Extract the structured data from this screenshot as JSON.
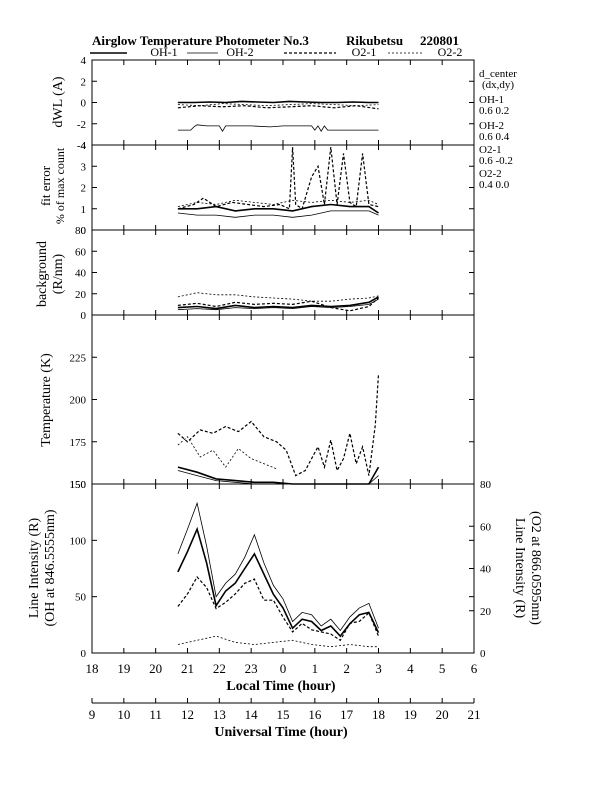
{
  "header": {
    "title": "Airglow Temperature Photometer No.3",
    "station": "Rikubetsu",
    "date_code": "220801"
  },
  "legend": [
    {
      "name": "OH-1",
      "style": "solid"
    },
    {
      "name": "OH-2",
      "style": "solid-thin"
    },
    {
      "name": "O2-1",
      "style": "dashed"
    },
    {
      "name": "O2-2",
      "style": "dotted"
    }
  ],
  "side_notes": {
    "header1": "d_center",
    "header2": "(dx,dy)",
    "oh1_name": "OH-1",
    "oh1_val": "0.6  0.2",
    "oh2_name": "OH-2",
    "oh2_val": "0.6  0.4",
    "o21_name": "O2-1",
    "o21_val": "0.6  -0.2",
    "o22_name": "O2-2",
    "o22_val": "0.4  0.0"
  },
  "x_axes": {
    "local_label": "Local Time (hour)",
    "local_ticks": [
      "18",
      "19",
      "20",
      "21",
      "22",
      "23",
      "0",
      "1",
      "2",
      "3",
      "4",
      "5",
      "6"
    ],
    "ut_label": "Universal Time (hour)",
    "ut_ticks": [
      "9",
      "10",
      "11",
      "12",
      "13",
      "14",
      "15",
      "16",
      "17",
      "18",
      "19",
      "20",
      "21"
    ]
  },
  "chart_data": [
    {
      "type": "line",
      "panel": "dwl",
      "ylabel": "dWL (A)",
      "ylim": [
        -4,
        4
      ],
      "yticks": [
        "-4",
        "-2",
        "0",
        "2",
        "4"
      ],
      "x_unit": "local time (h)",
      "series": [
        {
          "name": "OH-1",
          "x": [
            20.7,
            21.2,
            21.7,
            22.2,
            22.7,
            23.2,
            23.7,
            24.2,
            24.7,
            25.2,
            25.7,
            26.2,
            26.7,
            27.0
          ],
          "y": [
            0.0,
            0.0,
            0.05,
            0.0,
            0.1,
            0.05,
            0.0,
            0.1,
            0.05,
            0.0,
            0.0,
            0.05,
            0.0,
            0.0
          ]
        },
        {
          "name": "OH-2",
          "x": [
            20.7,
            21.1,
            21.2,
            21.3,
            21.6,
            22.0,
            22.1,
            22.2,
            22.4,
            23.0,
            23.6,
            24.0,
            24.5,
            24.9,
            25.0,
            25.1,
            25.2,
            25.3,
            25.4,
            25.8,
            26.4,
            27.0
          ],
          "y": [
            -2.6,
            -2.6,
            -2.3,
            -2.1,
            -2.2,
            -2.2,
            -2.7,
            -2.2,
            -2.2,
            -2.2,
            -2.3,
            -2.2,
            -2.2,
            -2.2,
            -2.6,
            -2.2,
            -2.7,
            -2.2,
            -2.6,
            -2.6,
            -2.6,
            -2.6
          ]
        },
        {
          "name": "O2-1",
          "x": [
            20.7,
            21.4,
            22.1,
            22.8,
            23.5,
            24.2,
            24.9,
            25.6,
            26.3,
            27.0
          ],
          "y": [
            -0.5,
            -0.3,
            -0.4,
            -0.3,
            -0.5,
            -0.4,
            -0.3,
            -0.5,
            -0.3,
            -0.6
          ]
        },
        {
          "name": "O2-2",
          "x": [
            20.7,
            21.4,
            22.1,
            22.8,
            23.5,
            24.2,
            24.9,
            25.6,
            26.3,
            27.0
          ],
          "y": [
            -0.2,
            -0.3,
            -0.1,
            -0.2,
            -0.3,
            -0.2,
            -0.1,
            -0.2,
            -0.3,
            -0.2
          ]
        }
      ]
    },
    {
      "type": "line",
      "panel": "fit_error",
      "ylabel": "fit error",
      "ylabel2": "% of max count",
      "ylim": [
        0,
        4
      ],
      "yticks": [
        "0",
        "1",
        "2",
        "3",
        "4"
      ],
      "x_unit": "local time (h)",
      "series": [
        {
          "name": "OH-1",
          "x": [
            20.7,
            21.3,
            21.9,
            22.5,
            23.1,
            23.7,
            24.3,
            24.9,
            25.5,
            26.1,
            26.7,
            27.0
          ],
          "y": [
            1.0,
            1.0,
            1.1,
            0.9,
            1.0,
            1.0,
            0.9,
            1.1,
            1.2,
            1.1,
            1.1,
            0.8
          ]
        },
        {
          "name": "OH-2",
          "x": [
            20.7,
            21.3,
            21.9,
            22.5,
            23.1,
            23.7,
            24.3,
            24.9,
            25.5,
            26.1,
            26.7,
            27.0
          ],
          "y": [
            0.8,
            0.7,
            0.7,
            0.6,
            0.7,
            0.7,
            0.6,
            0.7,
            0.9,
            0.9,
            0.9,
            0.7
          ]
        },
        {
          "name": "O2-1",
          "x": [
            20.7,
            21.2,
            21.5,
            21.9,
            22.4,
            22.9,
            23.4,
            23.9,
            24.2,
            24.3,
            24.4,
            24.6,
            24.9,
            25.1,
            25.3,
            25.5,
            25.7,
            25.9,
            26.1,
            26.3,
            26.5,
            26.7,
            27.0
          ],
          "y": [
            1.0,
            1.2,
            1.5,
            1.1,
            1.3,
            1.2,
            1.1,
            1.2,
            1.0,
            3.9,
            1.2,
            1.0,
            2.5,
            3.0,
            1.2,
            3.9,
            1.2,
            3.6,
            1.3,
            1.1,
            3.6,
            1.2,
            1.1
          ]
        },
        {
          "name": "O2-2",
          "x": [
            20.7,
            21.3,
            21.9,
            22.5,
            23.1,
            23.7,
            24.3,
            24.9,
            25.5,
            26.1,
            26.7,
            27.0
          ],
          "y": [
            1.1,
            1.3,
            1.2,
            1.4,
            1.3,
            1.2,
            1.4,
            1.3,
            1.4,
            1.3,
            1.4,
            1.2
          ]
        }
      ]
    },
    {
      "type": "line",
      "panel": "background",
      "ylabel": "background",
      "ylabel2": "(R/nm)",
      "ylim": [
        0,
        80
      ],
      "yticks": [
        "0",
        "20",
        "40",
        "60",
        "80"
      ],
      "x_unit": "local time (h)",
      "series": [
        {
          "name": "OH-1",
          "x": [
            20.7,
            21.3,
            21.9,
            22.5,
            23.1,
            23.7,
            24.3,
            24.9,
            25.5,
            26.1,
            26.7,
            27.0
          ],
          "y": [
            7,
            8,
            6,
            9,
            7,
            8,
            7,
            9,
            8,
            9,
            12,
            17
          ]
        },
        {
          "name": "OH-2",
          "x": [
            20.7,
            21.3,
            21.9,
            22.5,
            23.1,
            23.7,
            24.3,
            24.9,
            25.5,
            26.1,
            26.7,
            27.0
          ],
          "y": [
            5,
            6,
            5,
            7,
            6,
            7,
            6,
            8,
            7,
            8,
            10,
            15
          ]
        },
        {
          "name": "O2-1",
          "x": [
            20.7,
            21.3,
            21.9,
            22.5,
            23.1,
            23.7,
            24.3,
            24.9,
            25.5,
            26.1,
            26.7,
            27.0
          ],
          "y": [
            9,
            11,
            8,
            12,
            10,
            11,
            10,
            13,
            7,
            4,
            8,
            16
          ]
        },
        {
          "name": "O2-2",
          "x": [
            20.7,
            21.3,
            21.9,
            22.5,
            23.1,
            23.7,
            24.3,
            24.9,
            25.5,
            26.1,
            26.7,
            27.0
          ],
          "y": [
            17,
            21,
            19,
            19,
            17,
            16,
            15,
            13,
            13,
            15,
            16,
            18
          ]
        }
      ]
    },
    {
      "type": "line",
      "panel": "temperature",
      "ylabel": "Temperature (K)",
      "ylim": [
        150,
        250
      ],
      "yticks": [
        "150",
        "175",
        "200",
        "225"
      ],
      "x_unit": "local time (h)",
      "series": [
        {
          "name": "OH-1",
          "x": [
            20.7,
            21.3,
            21.9,
            22.5,
            23.1,
            23.7,
            24.3,
            24.9,
            25.5,
            26.1,
            26.7,
            27.0
          ],
          "y": [
            160,
            157,
            153,
            152,
            151,
            151,
            150,
            150,
            149,
            150,
            150,
            160
          ]
        },
        {
          "name": "OH-2",
          "x": [
            20.7,
            21.3,
            21.9,
            22.5,
            23.1,
            23.7,
            24.3,
            24.9,
            25.5,
            26.1,
            26.7,
            27.0
          ],
          "y": [
            158,
            155,
            152,
            151,
            150,
            150,
            149,
            149,
            148,
            149,
            149,
            155
          ]
        },
        {
          "name": "O2-1",
          "x": [
            20.7,
            21.0,
            21.4,
            21.8,
            22.2,
            22.6,
            23.0,
            23.4,
            23.8,
            24.1,
            24.4,
            24.7,
            24.9,
            25.1,
            25.3,
            25.5,
            25.7,
            25.9,
            26.1,
            26.3,
            26.5,
            26.7,
            26.9,
            27.0
          ],
          "y": [
            180,
            175,
            182,
            180,
            184,
            181,
            187,
            178,
            175,
            170,
            155,
            158,
            165,
            172,
            160,
            176,
            158,
            165,
            180,
            162,
            172,
            155,
            185,
            215
          ]
        },
        {
          "name": "O2-2",
          "x": [
            20.7,
            21.0,
            21.4,
            21.8,
            22.2,
            22.6,
            23.0,
            23.4,
            23.8
          ],
          "y": [
            173,
            178,
            166,
            170,
            160,
            171,
            165,
            162,
            159
          ]
        }
      ]
    },
    {
      "type": "line",
      "panel": "line_intensity",
      "ylabel": "Line Intensity (R)",
      "ylabel2": "(OH at 846.5555nm)",
      "ylim": [
        0,
        150
      ],
      "yticks": [
        "0",
        "50",
        "100",
        "150"
      ],
      "ylabel_right": "Line Intensity (R)",
      "ylabel_right2": "(O2 at 866.0595nm)",
      "ylim_right": [
        0,
        80
      ],
      "yticks_right": [
        "0",
        "20",
        "40",
        "60",
        "80"
      ],
      "x_unit": "local time (h)",
      "series": [
        {
          "name": "OH-1",
          "axis": "left",
          "x": [
            20.7,
            21.0,
            21.3,
            21.6,
            21.9,
            22.2,
            22.5,
            22.8,
            23.1,
            23.4,
            23.7,
            24.0,
            24.3,
            24.6,
            24.9,
            25.2,
            25.5,
            25.8,
            26.1,
            26.4,
            26.7,
            27.0
          ],
          "y": [
            72,
            90,
            110,
            80,
            42,
            55,
            62,
            75,
            88,
            70,
            52,
            40,
            22,
            30,
            28,
            20,
            24,
            15,
            26,
            34,
            36,
            18
          ]
        },
        {
          "name": "OH-2",
          "axis": "left",
          "x": [
            20.7,
            21.0,
            21.3,
            21.6,
            21.9,
            22.2,
            22.5,
            22.8,
            23.1,
            23.4,
            23.7,
            24.0,
            24.3,
            24.6,
            24.9,
            25.2,
            25.5,
            25.8,
            26.1,
            26.4,
            26.7,
            27.0
          ],
          "y": [
            88,
            110,
            133,
            95,
            50,
            62,
            70,
            85,
            105,
            80,
            60,
            48,
            28,
            36,
            34,
            24,
            30,
            20,
            32,
            40,
            44,
            22
          ]
        },
        {
          "name": "O2-1",
          "axis": "right",
          "x": [
            20.7,
            21.0,
            21.3,
            21.6,
            21.9,
            22.2,
            22.5,
            22.8,
            23.1,
            23.4,
            23.7,
            24.0,
            24.3,
            24.6,
            24.9,
            25.2,
            25.5,
            25.8,
            26.1,
            26.4,
            26.7,
            27.0
          ],
          "y": [
            22,
            28,
            36,
            31,
            21,
            24,
            28,
            33,
            35,
            25,
            25,
            17,
            10,
            14,
            11,
            10,
            9,
            6,
            14,
            15,
            19,
            8
          ]
        },
        {
          "name": "O2-2",
          "axis": "right",
          "x": [
            20.7,
            21.3,
            21.9,
            22.5,
            23.1,
            23.7,
            24.3,
            24.9,
            25.5,
            26.1,
            26.7,
            27.0
          ],
          "y": [
            4,
            6,
            8,
            5,
            4,
            5,
            6,
            4,
            3,
            4,
            3,
            3
          ]
        }
      ]
    }
  ]
}
